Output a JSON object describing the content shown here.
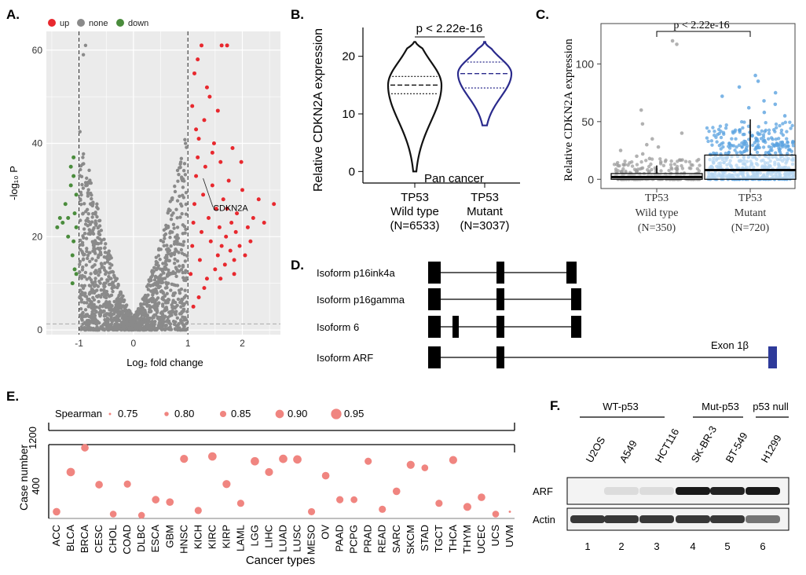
{
  "figure": {
    "panels": {
      "a": "A.",
      "b": "B.",
      "c": "C.",
      "d": "D.",
      "e": "E.",
      "f": "F."
    }
  },
  "chart_data": [
    {
      "id": "A",
      "type": "scatter",
      "xlabel": "Log₂ fold change",
      "ylabel": "-log₁₀ P",
      "xlim": [
        -1.6,
        2.7
      ],
      "ylim": [
        -1,
        64
      ],
      "xticks": [
        -1,
        0,
        1,
        2
      ],
      "yticks": [
        0,
        20,
        40,
        60
      ],
      "grid": true,
      "legend": {
        "position": "top-left",
        "entries": [
          {
            "label": "up",
            "color": "#e8282e"
          },
          {
            "label": "none",
            "color": "#8a8a8a"
          },
          {
            "label": "down",
            "color": "#4a8c3c"
          }
        ]
      },
      "thresholds": {
        "fold_change": [
          -1,
          1
        ],
        "p": 1.3
      },
      "annotation": {
        "label": "CDKN2A",
        "x": 1.72,
        "y": 26
      },
      "series": [
        {
          "name": "up",
          "color": "#e8282e",
          "points": [
            [
              1.05,
              12
            ],
            [
              1.08,
              18
            ],
            [
              1.1,
              23
            ],
            [
              1.12,
              27
            ],
            [
              1.15,
              33
            ],
            [
              1.18,
              37
            ],
            [
              1.2,
              41
            ],
            [
              1.22,
              15
            ],
            [
              1.25,
              21
            ],
            [
              1.28,
              29
            ],
            [
              1.3,
              45
            ],
            [
              1.32,
              35
            ],
            [
              1.35,
              11
            ],
            [
              1.38,
              24
            ],
            [
              1.4,
              50
            ],
            [
              1.42,
              19
            ],
            [
              1.45,
              31
            ],
            [
              1.48,
              40
            ],
            [
              1.5,
              13
            ],
            [
              1.52,
              26
            ],
            [
              1.55,
              16
            ],
            [
              1.58,
              22
            ],
            [
              1.6,
              36
            ],
            [
              1.62,
              18
            ],
            [
              1.65,
              28
            ],
            [
              1.68,
              14
            ],
            [
              1.7,
              20
            ],
            [
              1.72,
              26
            ],
            [
              1.75,
              32
            ],
            [
              1.78,
              17
            ],
            [
              1.8,
              23
            ],
            [
              1.82,
              39
            ],
            [
              1.85,
              15
            ],
            [
              1.88,
              21
            ],
            [
              1.9,
              25
            ],
            [
              1.95,
              18
            ],
            [
              2.0,
              30
            ],
            [
              2.05,
              16
            ],
            [
              2.1,
              22
            ],
            [
              2.15,
              19
            ],
            [
              2.2,
              24
            ],
            [
              2.3,
              28
            ],
            [
              2.4,
              23
            ],
            [
              2.58,
              27
            ],
            [
              1.12,
              55
            ],
            [
              1.18,
              58
            ],
            [
              1.25,
              61
            ],
            [
              1.62,
              61
            ],
            [
              1.72,
              61
            ],
            [
              1.55,
              47
            ],
            [
              1.35,
              52
            ],
            [
              1.08,
              48
            ],
            [
              1.15,
              43
            ],
            [
              1.45,
              38
            ],
            [
              1.98,
              36
            ],
            [
              1.3,
              9
            ],
            [
              1.6,
              11
            ],
            [
              1.85,
              12
            ],
            [
              1.1,
              5
            ],
            [
              1.2,
              7
            ]
          ]
        },
        {
          "name": "down",
          "color": "#4a8c3c",
          "points": [
            [
              -1.05,
              29
            ],
            [
              -1.1,
              33
            ],
            [
              -1.08,
              25
            ],
            [
              -1.15,
              31
            ],
            [
              -1.05,
              22
            ],
            [
              -1.1,
              19
            ],
            [
              -1.12,
              16
            ],
            [
              -1.08,
              13
            ],
            [
              -1.2,
              24
            ],
            [
              -1.25,
              27
            ],
            [
              -1.3,
              23
            ],
            [
              -1.35,
              24
            ],
            [
              -1.15,
              35
            ],
            [
              -1.1,
              37
            ],
            [
              -1.05,
              12
            ],
            [
              -1.12,
              10
            ],
            [
              -1.4,
              22
            ],
            [
              -1.2,
              20
            ]
          ]
        },
        {
          "name": "none",
          "color": "#8a8a8a",
          "points": []
        }
      ]
    },
    {
      "id": "B",
      "type": "violin",
      "ylabel": "Relative CDKN2A expression",
      "ylim": [
        -2,
        25
      ],
      "yticks": [
        0,
        10,
        20
      ],
      "categories": [
        "TP53\nWild type\n(N=6533)",
        "TP53\nMutant\n(N=3037)"
      ],
      "category_lines": [
        [
          "TP53",
          "Wild type",
          "(N=6533)"
        ],
        [
          "TP53",
          "Mutant",
          "(N=3037)"
        ]
      ],
      "annotation": "p < 2.22e-16",
      "inner_label": "Pan cancer",
      "series": [
        {
          "color": "#111111",
          "quartiles": [
            13.5,
            15,
            16.5
          ],
          "min": 0,
          "max": 22.5
        },
        {
          "color": "#2a2a8c",
          "quartiles": [
            14.5,
            17,
            19
          ],
          "min": 8,
          "max": 22.5
        }
      ]
    },
    {
      "id": "C",
      "type": "box",
      "ylabel": "Relative CDKN2A expression",
      "ylim": [
        -8,
        135
      ],
      "yticks": [
        0,
        50,
        100
      ],
      "categories": [
        [
          "TP53",
          "Wild type",
          "(N=350)"
        ],
        [
          "TP53",
          "Mutant",
          "(N=720)"
        ]
      ],
      "annotation": "p < 2.22e-16",
      "series": [
        {
          "color": "#9e9e9e",
          "q1": 0,
          "median": 2,
          "q3": 5,
          "whisker_high": 12,
          "outliers": [
            120,
            117,
            60,
            48,
            40,
            35,
            30,
            28,
            25,
            22,
            20,
            18,
            15
          ]
        },
        {
          "color": "#5ba3e0",
          "q1": 0,
          "median": 8,
          "q3": 21,
          "whisker_high": 52,
          "outliers": [
            90,
            85,
            80,
            75,
            72,
            68,
            65,
            62,
            58,
            55
          ]
        }
      ]
    },
    {
      "id": "D",
      "type": "diagram",
      "isoforms": [
        {
          "label": "Isoform p16ink4a"
        },
        {
          "label": "Isoform p16gamma"
        },
        {
          "label": "Isoform 6"
        },
        {
          "label": "Isoform ARF"
        }
      ],
      "exon_label": "Exon 1β",
      "exon_color": "#2e3a9a"
    },
    {
      "id": "E",
      "type": "scatter",
      "xlabel": "Cancer types",
      "ylabel": "Case number",
      "yticks": [
        400,
        800,
        1200
      ],
      "legend": {
        "title": "Spearman",
        "entries": [
          "0.75",
          "0.80",
          "0.85",
          "0.90",
          "0.95"
        ]
      },
      "color": "#f08580",
      "categories": [
        "ACC",
        "BLCA",
        "BRCA",
        "CESC",
        "CHOL",
        "COAD",
        "DLBC",
        "ESCA",
        "GBM",
        "HNSC",
        "KICH",
        "KIRC",
        "KIRP",
        "LAML",
        "LGG",
        "LIHC",
        "LUAD",
        "LUSC",
        "MESO",
        "OV",
        "PAAD",
        "PCPG",
        "PRAD",
        "READ",
        "SARC",
        "SKCM",
        "STAD",
        "TGCT",
        "THCA",
        "THYM",
        "UCEC",
        "UCS",
        "UVM"
      ],
      "values": [
        80,
        410,
        1220,
        305,
        60,
        310,
        50,
        180,
        160,
        520,
        90,
        540,
        310,
        150,
        500,
        410,
        520,
        515,
        80,
        380,
        180,
        180,
        500,
        100,
        250,
        470,
        445,
        150,
        510,
        120,
        200,
        60,
        80
      ],
      "spearman": [
        0.88,
        0.9,
        0.88,
        0.88,
        0.86,
        0.87,
        0.86,
        0.88,
        0.88,
        0.89,
        0.87,
        0.9,
        0.89,
        0.87,
        0.9,
        0.89,
        0.9,
        0.9,
        0.87,
        0.88,
        0.87,
        0.86,
        0.87,
        0.87,
        0.88,
        0.89,
        0.86,
        0.87,
        0.89,
        0.89,
        0.88,
        0.86,
        0.75
      ]
    },
    {
      "id": "F",
      "type": "blot",
      "groups": [
        "WT-p53",
        "Mut-p53",
        "p53 null"
      ],
      "lanes": [
        "U2OS",
        "A549",
        "HCT116",
        "SK-BR-3",
        "BT-549",
        "H1299"
      ],
      "lane_numbers": [
        "1",
        "2",
        "3",
        "4",
        "5",
        "6"
      ],
      "rows": [
        {
          "label": "ARF",
          "intensity": [
            0,
            0.05,
            0.05,
            1,
            0.95,
            1
          ]
        },
        {
          "label": "Actin",
          "intensity": [
            0.85,
            0.85,
            0.85,
            0.85,
            0.85,
            0.55
          ]
        }
      ]
    }
  ]
}
